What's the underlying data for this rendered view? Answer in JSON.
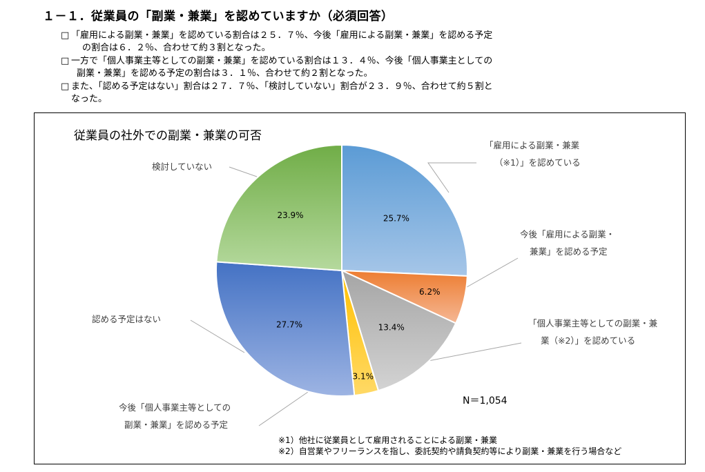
{
  "heading": "１－１．従業員の「副業・兼業」を認めていますか（必須回答）",
  "bullets": [
    {
      "mark": "□",
      "lines": [
        "「雇用による副業・兼業」を認めている割合は２５．７％、今後「雇用による副業・兼業」を認める予定",
        "の割合は６．２％、合わせて約３割となった。"
      ]
    },
    {
      "mark": "□",
      "lines": [
        "一方で「個人事業主等としての副業・兼業」を認めている割合は１３．４％、今後「個人事業主としての",
        "副業・兼業」を認める予定の割合は３．１％、合わせて約２割となった。"
      ]
    },
    {
      "mark": "□",
      "lines": [
        "また、「認める予定はない」割合は２７．７％、「検討していない」割合が２３．９％、合わせて約５割と",
        "なった。"
      ]
    }
  ],
  "chart_data": {
    "type": "pie",
    "title": "従業員の社外での副業・兼業の可否",
    "start": "12 o'clock, clockwise",
    "slices": [
      {
        "label_lines": [
          "「雇用による副業・兼業",
          "（※1）」を認めている"
        ],
        "value": 25.7,
        "value_label": "25.7%",
        "color": "#5b9bd5",
        "color_light": "#a6c6e8"
      },
      {
        "label_lines": [
          "今後「雇用による副業・",
          "兼業」を認める予定"
        ],
        "value": 6.2,
        "value_label": "6.2%",
        "color": "#ed7d31",
        "color_light": "#f5b794"
      },
      {
        "label_lines": [
          "「個人事業主等としての副業・兼",
          "業（※2）」を認めている"
        ],
        "value": 13.4,
        "value_label": "13.4%",
        "color": "#a5a5a5",
        "color_light": "#d3d3d3"
      },
      {
        "label_lines": [
          "今後「個人事業主等としての",
          "副業・兼業」を認める予定"
        ],
        "value": 3.1,
        "value_label": "3.1%",
        "color": "#ffc000",
        "color_light": "#ffd966"
      },
      {
        "label_lines": [
          "認める予定はない"
        ],
        "value": 27.7,
        "value_label": "27.7%",
        "color": "#4472c4",
        "color_light": "#9db4e3"
      },
      {
        "label_lines": [
          "検討していない"
        ],
        "value": 23.9,
        "value_label": "23.9%",
        "color": "#70ad47",
        "color_light": "#b5d99d"
      }
    ],
    "n_label": "N＝1,054",
    "notes": [
      "※1）他社に従業員として雇用されることによる副業・兼業",
      "※2）自営業やフリーランスを指し、委託契約や請負契約等により副業・兼業を行う場合など"
    ]
  }
}
